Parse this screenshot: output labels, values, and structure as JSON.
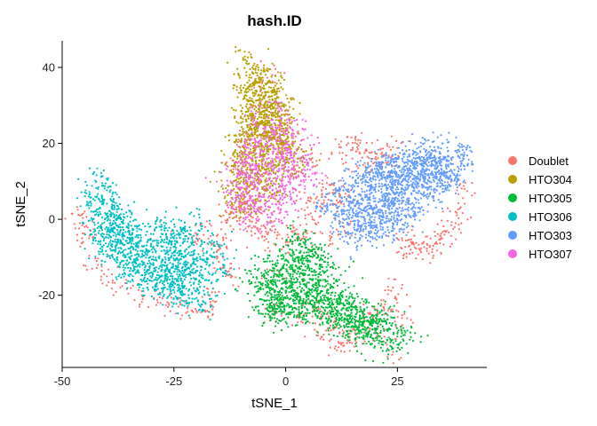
{
  "chart_data": {
    "type": "scatter",
    "title": "hash.ID",
    "xlabel": "tSNE_1",
    "ylabel": "tSNE_2",
    "xlim": [
      -50,
      45
    ],
    "ylim": [
      -39,
      47
    ],
    "xticks": [
      -50,
      -25,
      0,
      25
    ],
    "xtick_labels": [
      "-50",
      "-25",
      "0",
      "25"
    ],
    "yticks": [
      -20,
      0,
      20,
      40
    ],
    "ytick_labels": [
      "-20",
      "0",
      "20",
      "40"
    ],
    "grid": false,
    "legend_position": "right",
    "series": [
      {
        "name": "Doublet",
        "color": "#F8766D",
        "points": [
          [
            -46,
            1
          ],
          [
            -45,
            -2
          ],
          [
            -44,
            -5
          ],
          [
            -42,
            -12
          ],
          [
            -40,
            -15
          ],
          [
            -37,
            -18
          ],
          [
            -32,
            -21
          ],
          [
            -28,
            -22
          ],
          [
            -24,
            -23
          ],
          [
            -21,
            -24
          ],
          [
            -18,
            -24
          ],
          [
            -17,
            -20
          ],
          [
            -15,
            -8
          ],
          [
            -14,
            -5
          ],
          [
            -20,
            -5
          ],
          [
            -18,
            -2
          ],
          [
            -13,
            0
          ],
          [
            -12,
            2
          ],
          [
            -10,
            3
          ],
          [
            -9,
            4
          ],
          [
            -8,
            1
          ],
          [
            -7,
            -2
          ],
          [
            -6,
            -3
          ],
          [
            -4,
            -4
          ],
          [
            -2,
            -5
          ],
          [
            0,
            -6
          ],
          [
            -9,
            10
          ],
          [
            -10,
            18
          ],
          [
            -8,
            22
          ],
          [
            -11,
            15
          ],
          [
            -14,
            -12
          ],
          [
            -12,
            -15
          ],
          [
            8,
            -25
          ],
          [
            10,
            -28
          ],
          [
            12,
            -30
          ],
          [
            14,
            -32
          ],
          [
            16,
            -31
          ],
          [
            19,
            -25
          ],
          [
            22,
            -24
          ],
          [
            26,
            -26
          ],
          [
            25,
            -22
          ],
          [
            24,
            -18
          ],
          [
            20,
            -30
          ],
          [
            24,
            -34
          ],
          [
            8,
            -31
          ],
          [
            11,
            -34
          ],
          [
            5,
            -22
          ],
          [
            3,
            -26
          ],
          [
            -3,
            -25
          ],
          [
            -2,
            -15
          ],
          [
            4,
            -5
          ],
          [
            2,
            -3
          ],
          [
            6,
            0
          ],
          [
            8,
            3
          ],
          [
            9,
            8
          ],
          [
            10,
            9
          ],
          [
            11,
            4
          ],
          [
            12,
            6
          ],
          [
            13,
            -2
          ],
          [
            10,
            -5
          ],
          [
            12,
            19
          ],
          [
            14,
            20
          ],
          [
            16,
            19
          ],
          [
            18,
            18
          ],
          [
            20,
            16
          ],
          [
            22,
            17
          ],
          [
            24,
            19
          ],
          [
            21,
            14
          ],
          [
            16,
            14
          ],
          [
            26,
            -5
          ],
          [
            28,
            -6
          ],
          [
            30,
            -8
          ],
          [
            32,
            -9
          ],
          [
            27,
            -9
          ],
          [
            33,
            -7
          ],
          [
            35,
            -5
          ],
          [
            36,
            -3
          ],
          [
            38,
            2
          ],
          [
            40,
            8
          ],
          [
            38,
            -1
          ],
          [
            -1,
            20
          ],
          [
            2,
            12
          ],
          [
            -6,
            35
          ],
          [
            -5,
            30
          ],
          [
            -3,
            38
          ],
          [
            0,
            25
          ],
          [
            6,
            15
          ],
          [
            5,
            5
          ]
        ]
      },
      {
        "name": "HTO304",
        "color": "#B79F00",
        "center": [
          -4,
          23
        ],
        "spread": [
          4.5,
          8
        ],
        "count": 700,
        "points": [
          [
            -9,
            42
          ],
          [
            -7,
            41
          ],
          [
            -5,
            39
          ],
          [
            -8,
            38
          ],
          [
            -3,
            36
          ],
          [
            -6,
            36
          ],
          [
            -10,
            34
          ],
          [
            -2,
            33
          ],
          [
            -8,
            32
          ],
          [
            -4,
            31
          ],
          [
            0,
            30
          ],
          [
            -7,
            29
          ],
          [
            -3,
            28
          ],
          [
            -10,
            27
          ],
          [
            -1,
            26
          ],
          [
            -6,
            25
          ],
          [
            -8,
            24
          ],
          [
            0,
            24
          ],
          [
            -4,
            22
          ],
          [
            -11,
            21
          ],
          [
            -2,
            20
          ],
          [
            -7,
            19
          ],
          [
            1,
            19
          ],
          [
            -5,
            18
          ],
          [
            -9,
            16
          ],
          [
            -3,
            15
          ],
          [
            -12,
            14
          ],
          [
            -6,
            13
          ],
          [
            2,
            13
          ],
          [
            -10,
            10
          ],
          [
            -4,
            9
          ],
          [
            -14,
            8
          ],
          [
            -8,
            6
          ],
          [
            -2,
            7
          ],
          [
            -12,
            4
          ],
          [
            -6,
            3
          ],
          [
            -11,
            1
          ],
          [
            3,
            16
          ]
        ]
      },
      {
        "name": "HTO305",
        "color": "#00BA38",
        "center": [
          7,
          -18
        ],
        "spread": [
          7,
          6
        ],
        "count": 1000,
        "points": [
          [
            2,
            -4
          ],
          [
            4,
            -6
          ],
          [
            6,
            -8
          ],
          [
            0,
            -9
          ],
          [
            -3,
            -11
          ],
          [
            5,
            -11
          ],
          [
            8,
            -12
          ],
          [
            -6,
            -13
          ],
          [
            2,
            -14
          ],
          [
            6,
            -16
          ],
          [
            -4,
            -17
          ],
          [
            10,
            -18
          ],
          [
            0,
            -19
          ],
          [
            -7,
            -20
          ],
          [
            4,
            -21
          ],
          [
            12,
            -21
          ],
          [
            -2,
            -22
          ],
          [
            8,
            -23
          ],
          [
            -6,
            -24
          ],
          [
            14,
            -24
          ],
          [
            3,
            -25
          ],
          [
            17,
            -26
          ],
          [
            -3,
            -26
          ],
          [
            9,
            -26
          ],
          [
            20,
            -27
          ],
          [
            13,
            -28
          ],
          [
            23,
            -29
          ],
          [
            18,
            -30
          ],
          [
            26,
            -30
          ],
          [
            28,
            -31
          ],
          [
            21,
            -32
          ],
          [
            25,
            -33
          ],
          [
            24,
            -34
          ],
          [
            19,
            -33
          ],
          [
            16,
            -29
          ],
          [
            -8,
            -17
          ],
          [
            -4,
            -24
          ],
          [
            0,
            -27
          ]
        ]
      },
      {
        "name": "HTO306",
        "color": "#00BFC4",
        "center": [
          -33,
          -8
        ],
        "spread": [
          7,
          7
        ],
        "count": 950,
        "points": [
          [
            -43,
            12
          ],
          [
            -42,
            8
          ],
          [
            -44,
            6
          ],
          [
            -41,
            4
          ],
          [
            -43,
            2
          ],
          [
            -39,
            1
          ],
          [
            -42,
            -1
          ],
          [
            -37,
            -2
          ],
          [
            -40,
            -4
          ],
          [
            -35,
            -4
          ],
          [
            -38,
            -7
          ],
          [
            -33,
            -7
          ],
          [
            -41,
            -8
          ],
          [
            -30,
            -8
          ],
          [
            -36,
            -10
          ],
          [
            -27,
            -10
          ],
          [
            -33,
            -12
          ],
          [
            -24,
            -12
          ],
          [
            -30,
            -14
          ],
          [
            -21,
            -14
          ],
          [
            -35,
            -15
          ],
          [
            -27,
            -16
          ],
          [
            -18,
            -16
          ],
          [
            -24,
            -18
          ],
          [
            -31,
            -18
          ],
          [
            -20,
            -19
          ],
          [
            -26,
            -20
          ],
          [
            -17,
            -21
          ],
          [
            -22,
            -22
          ],
          [
            -19,
            -23
          ],
          [
            -25,
            -5
          ],
          [
            -22,
            -3
          ],
          [
            -19,
            -1
          ],
          [
            -16,
            -6
          ],
          [
            -14,
            -9
          ],
          [
            -28,
            -2
          ],
          [
            -17,
            -12
          ],
          [
            -14,
            -14
          ]
        ]
      },
      {
        "name": "HTO303",
        "color": "#619CFF",
        "center": [
          23,
          6
        ],
        "spread": [
          9,
          5
        ],
        "count": 1100,
        "points": [
          [
            31,
            20
          ],
          [
            35,
            20
          ],
          [
            39,
            19
          ],
          [
            27,
            18
          ],
          [
            33,
            18
          ],
          [
            40,
            17
          ],
          [
            24,
            17
          ],
          [
            29,
            16
          ],
          [
            37,
            16
          ],
          [
            21,
            15
          ],
          [
            34,
            14
          ],
          [
            40,
            14
          ],
          [
            18,
            13
          ],
          [
            26,
            13
          ],
          [
            31,
            12
          ],
          [
            38,
            11
          ],
          [
            15,
            11
          ],
          [
            22,
            11
          ],
          [
            28,
            10
          ],
          [
            35,
            9
          ],
          [
            12,
            8
          ],
          [
            19,
            8
          ],
          [
            25,
            7
          ],
          [
            32,
            6
          ],
          [
            10,
            5
          ],
          [
            17,
            4
          ],
          [
            23,
            4
          ],
          [
            29,
            3
          ],
          [
            9,
            2
          ],
          [
            15,
            1
          ],
          [
            21,
            1
          ],
          [
            26,
            0
          ],
          [
            12,
            -1
          ],
          [
            18,
            -2
          ],
          [
            24,
            -3
          ],
          [
            14,
            -4
          ],
          [
            20,
            -5
          ],
          [
            16,
            -7
          ]
        ]
      },
      {
        "name": "HTO307",
        "color": "#F564E3",
        "center": [
          -4,
          10
        ],
        "spread": [
          4,
          5
        ],
        "count": 380,
        "points": [
          [
            -1,
            29
          ],
          [
            -4,
            27
          ],
          [
            2,
            26
          ],
          [
            -7,
            25
          ],
          [
            -2,
            23
          ],
          [
            4,
            21
          ],
          [
            -6,
            20
          ],
          [
            0,
            19
          ],
          [
            -9,
            18
          ],
          [
            5,
            17
          ],
          [
            -3,
            16
          ],
          [
            -11,
            15
          ],
          [
            2,
            14
          ],
          [
            -6,
            13
          ],
          [
            6,
            12
          ],
          [
            -9,
            11
          ],
          [
            -1,
            10
          ],
          [
            -13,
            9
          ],
          [
            3,
            9
          ],
          [
            -5,
            8
          ],
          [
            -10,
            6
          ],
          [
            1,
            6
          ],
          [
            -3,
            4
          ],
          [
            -12,
            3
          ],
          [
            -7,
            2
          ],
          [
            0,
            2
          ],
          [
            -9,
            0
          ],
          [
            -4,
            -1
          ]
        ]
      }
    ]
  }
}
